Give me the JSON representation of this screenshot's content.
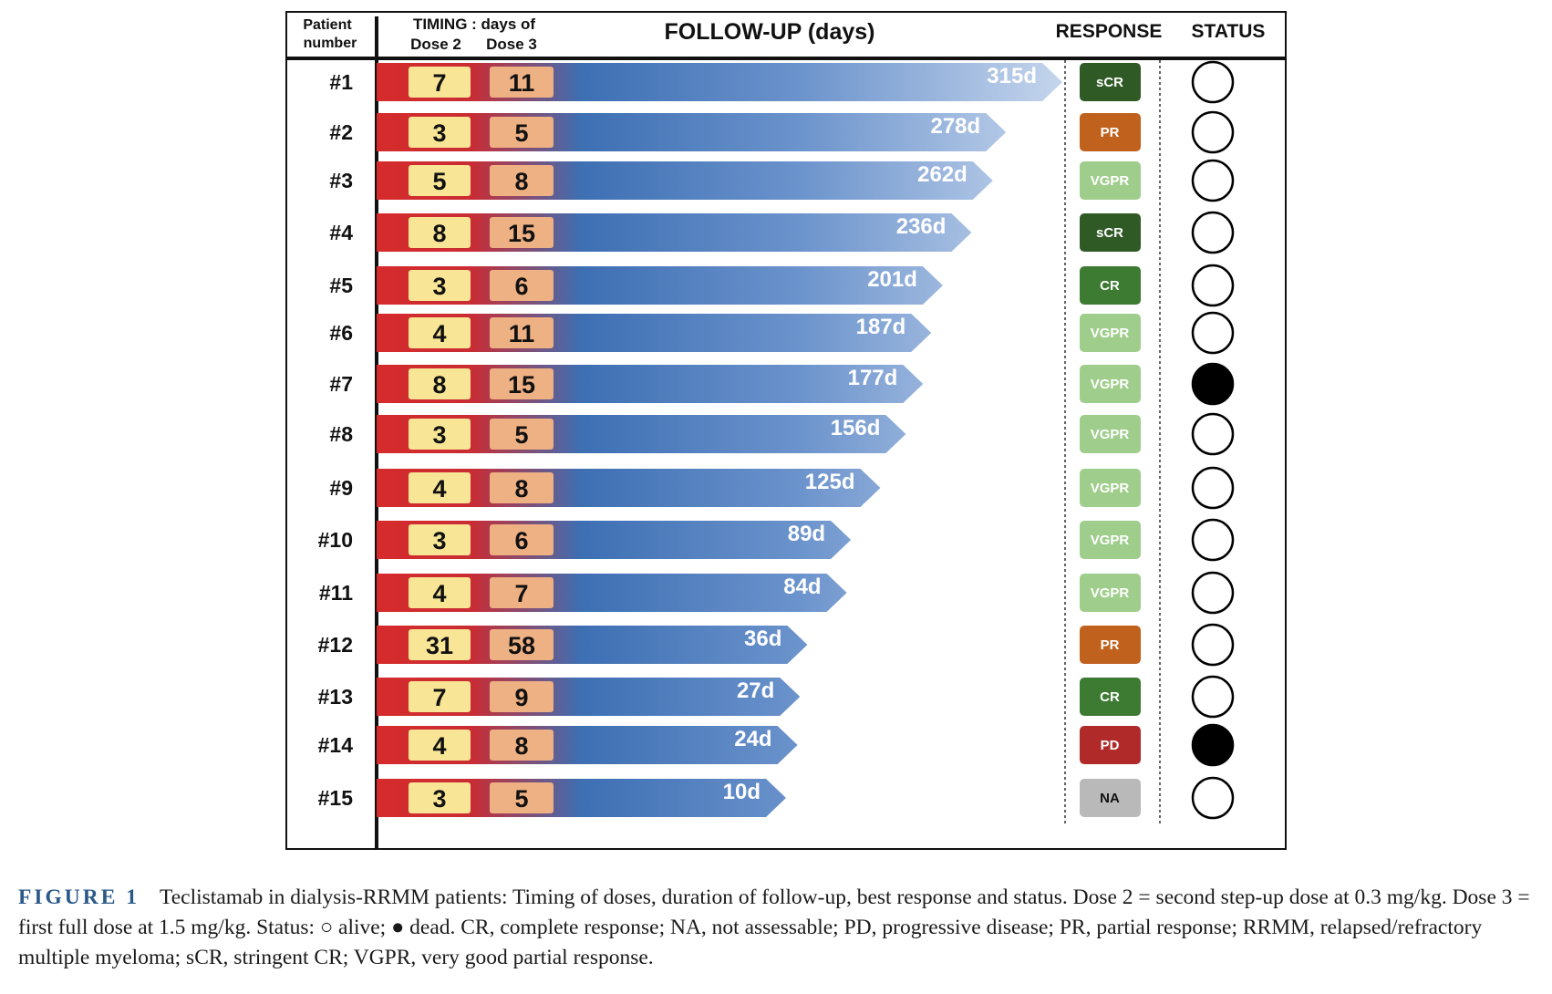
{
  "chart_data": {
    "type": "bar",
    "headers": {
      "patient_line1": "Patient",
      "patient_line2": "number",
      "timing_line1": "TIMING : days of",
      "dose2": "Dose 2",
      "dose3": "Dose 3",
      "followup": "FOLLOW-UP (days)",
      "response": "RESPONSE",
      "status": "STATUS"
    },
    "patients": [
      {
        "id": "#1",
        "dose2": "7",
        "dose3": "11",
        "followup": 315,
        "label": "315d",
        "response": "sCR",
        "status": "alive"
      },
      {
        "id": "#2",
        "dose2": "3",
        "dose3": "5",
        "followup": 278,
        "label": "278d",
        "response": "PR",
        "status": "alive"
      },
      {
        "id": "#3",
        "dose2": "5",
        "dose3": "8",
        "followup": 262,
        "label": "262d",
        "response": "VGPR",
        "status": "alive"
      },
      {
        "id": "#4",
        "dose2": "8",
        "dose3": "15",
        "followup": 236,
        "label": "236d",
        "response": "sCR",
        "status": "alive"
      },
      {
        "id": "#5",
        "dose2": "3",
        "dose3": "6",
        "followup": 201,
        "label": "201d",
        "response": "CR",
        "status": "alive"
      },
      {
        "id": "#6",
        "dose2": "4",
        "dose3": "11",
        "followup": 187,
        "label": "187d",
        "response": "VGPR",
        "status": "alive"
      },
      {
        "id": "#7",
        "dose2": "8",
        "dose3": "15",
        "followup": 177,
        "label": "177d",
        "response": "VGPR",
        "status": "dead"
      },
      {
        "id": "#8",
        "dose2": "3",
        "dose3": "5",
        "followup": 156,
        "label": "156d",
        "response": "VGPR",
        "status": "alive"
      },
      {
        "id": "#9",
        "dose2": "4",
        "dose3": "8",
        "followup": 125,
        "label": "125d",
        "response": "VGPR",
        "status": "alive"
      },
      {
        "id": "#10",
        "dose2": "3",
        "dose3": "6",
        "followup": 89,
        "label": "89d",
        "response": "VGPR",
        "status": "alive"
      },
      {
        "id": "#11",
        "dose2": "4",
        "dose3": "7",
        "followup": 84,
        "label": "84d",
        "response": "VGPR",
        "status": "alive"
      },
      {
        "id": "#12",
        "dose2": "31",
        "dose3": "58",
        "followup": 36,
        "label": "36d",
        "response": "PR",
        "status": "alive"
      },
      {
        "id": "#13",
        "dose2": "7",
        "dose3": "9",
        "followup": 27,
        "label": "27d",
        "response": "CR",
        "status": "alive"
      },
      {
        "id": "#14",
        "dose2": "4",
        "dose3": "8",
        "followup": 24,
        "label": "24d",
        "response": "PD",
        "status": "dead"
      },
      {
        "id": "#15",
        "dose2": "3",
        "dose3": "5",
        "followup": 10,
        "label": "10d",
        "response": "NA",
        "status": "alive"
      }
    ],
    "response_colors": {
      "sCR": {
        "fill": "#2f5a25",
        "text": "#ffffff"
      },
      "CR": {
        "fill": "#3d7a32",
        "text": "#ffffff"
      },
      "VGPR": {
        "fill": "#9fcd8b",
        "text": "#ffffff"
      },
      "PR": {
        "fill": "#c0621e",
        "text": "#ffffff"
      },
      "PD": {
        "fill": "#b02a2a",
        "text": "#ffffff"
      },
      "NA": {
        "fill": "#b9b9b9",
        "text": "#111111"
      }
    },
    "colors": {
      "bar_start": "#d62b2b",
      "bar_mid": "#3d6fb3",
      "bar_end": "#b9cce7",
      "dose2_box": "#f8e595",
      "dose3_box": "#eeb184",
      "status_dead": "#000000"
    }
  },
  "caption": {
    "label": "FIGURE 1",
    "text": "Teclistamab in dialysis-RRMM patients: Timing of doses, duration of follow-up, best response and status. Dose 2 = second step-up dose at 0.3 mg/kg. Dose 3 = first full dose at 1.5 mg/kg. Status: ○ alive; ● dead. CR, complete response; NA, not assessable; PD, progressive disease; PR, partial response; RRMM, relapsed/refractory multiple myeloma; sCR, stringent CR; VGPR, very good partial response."
  }
}
